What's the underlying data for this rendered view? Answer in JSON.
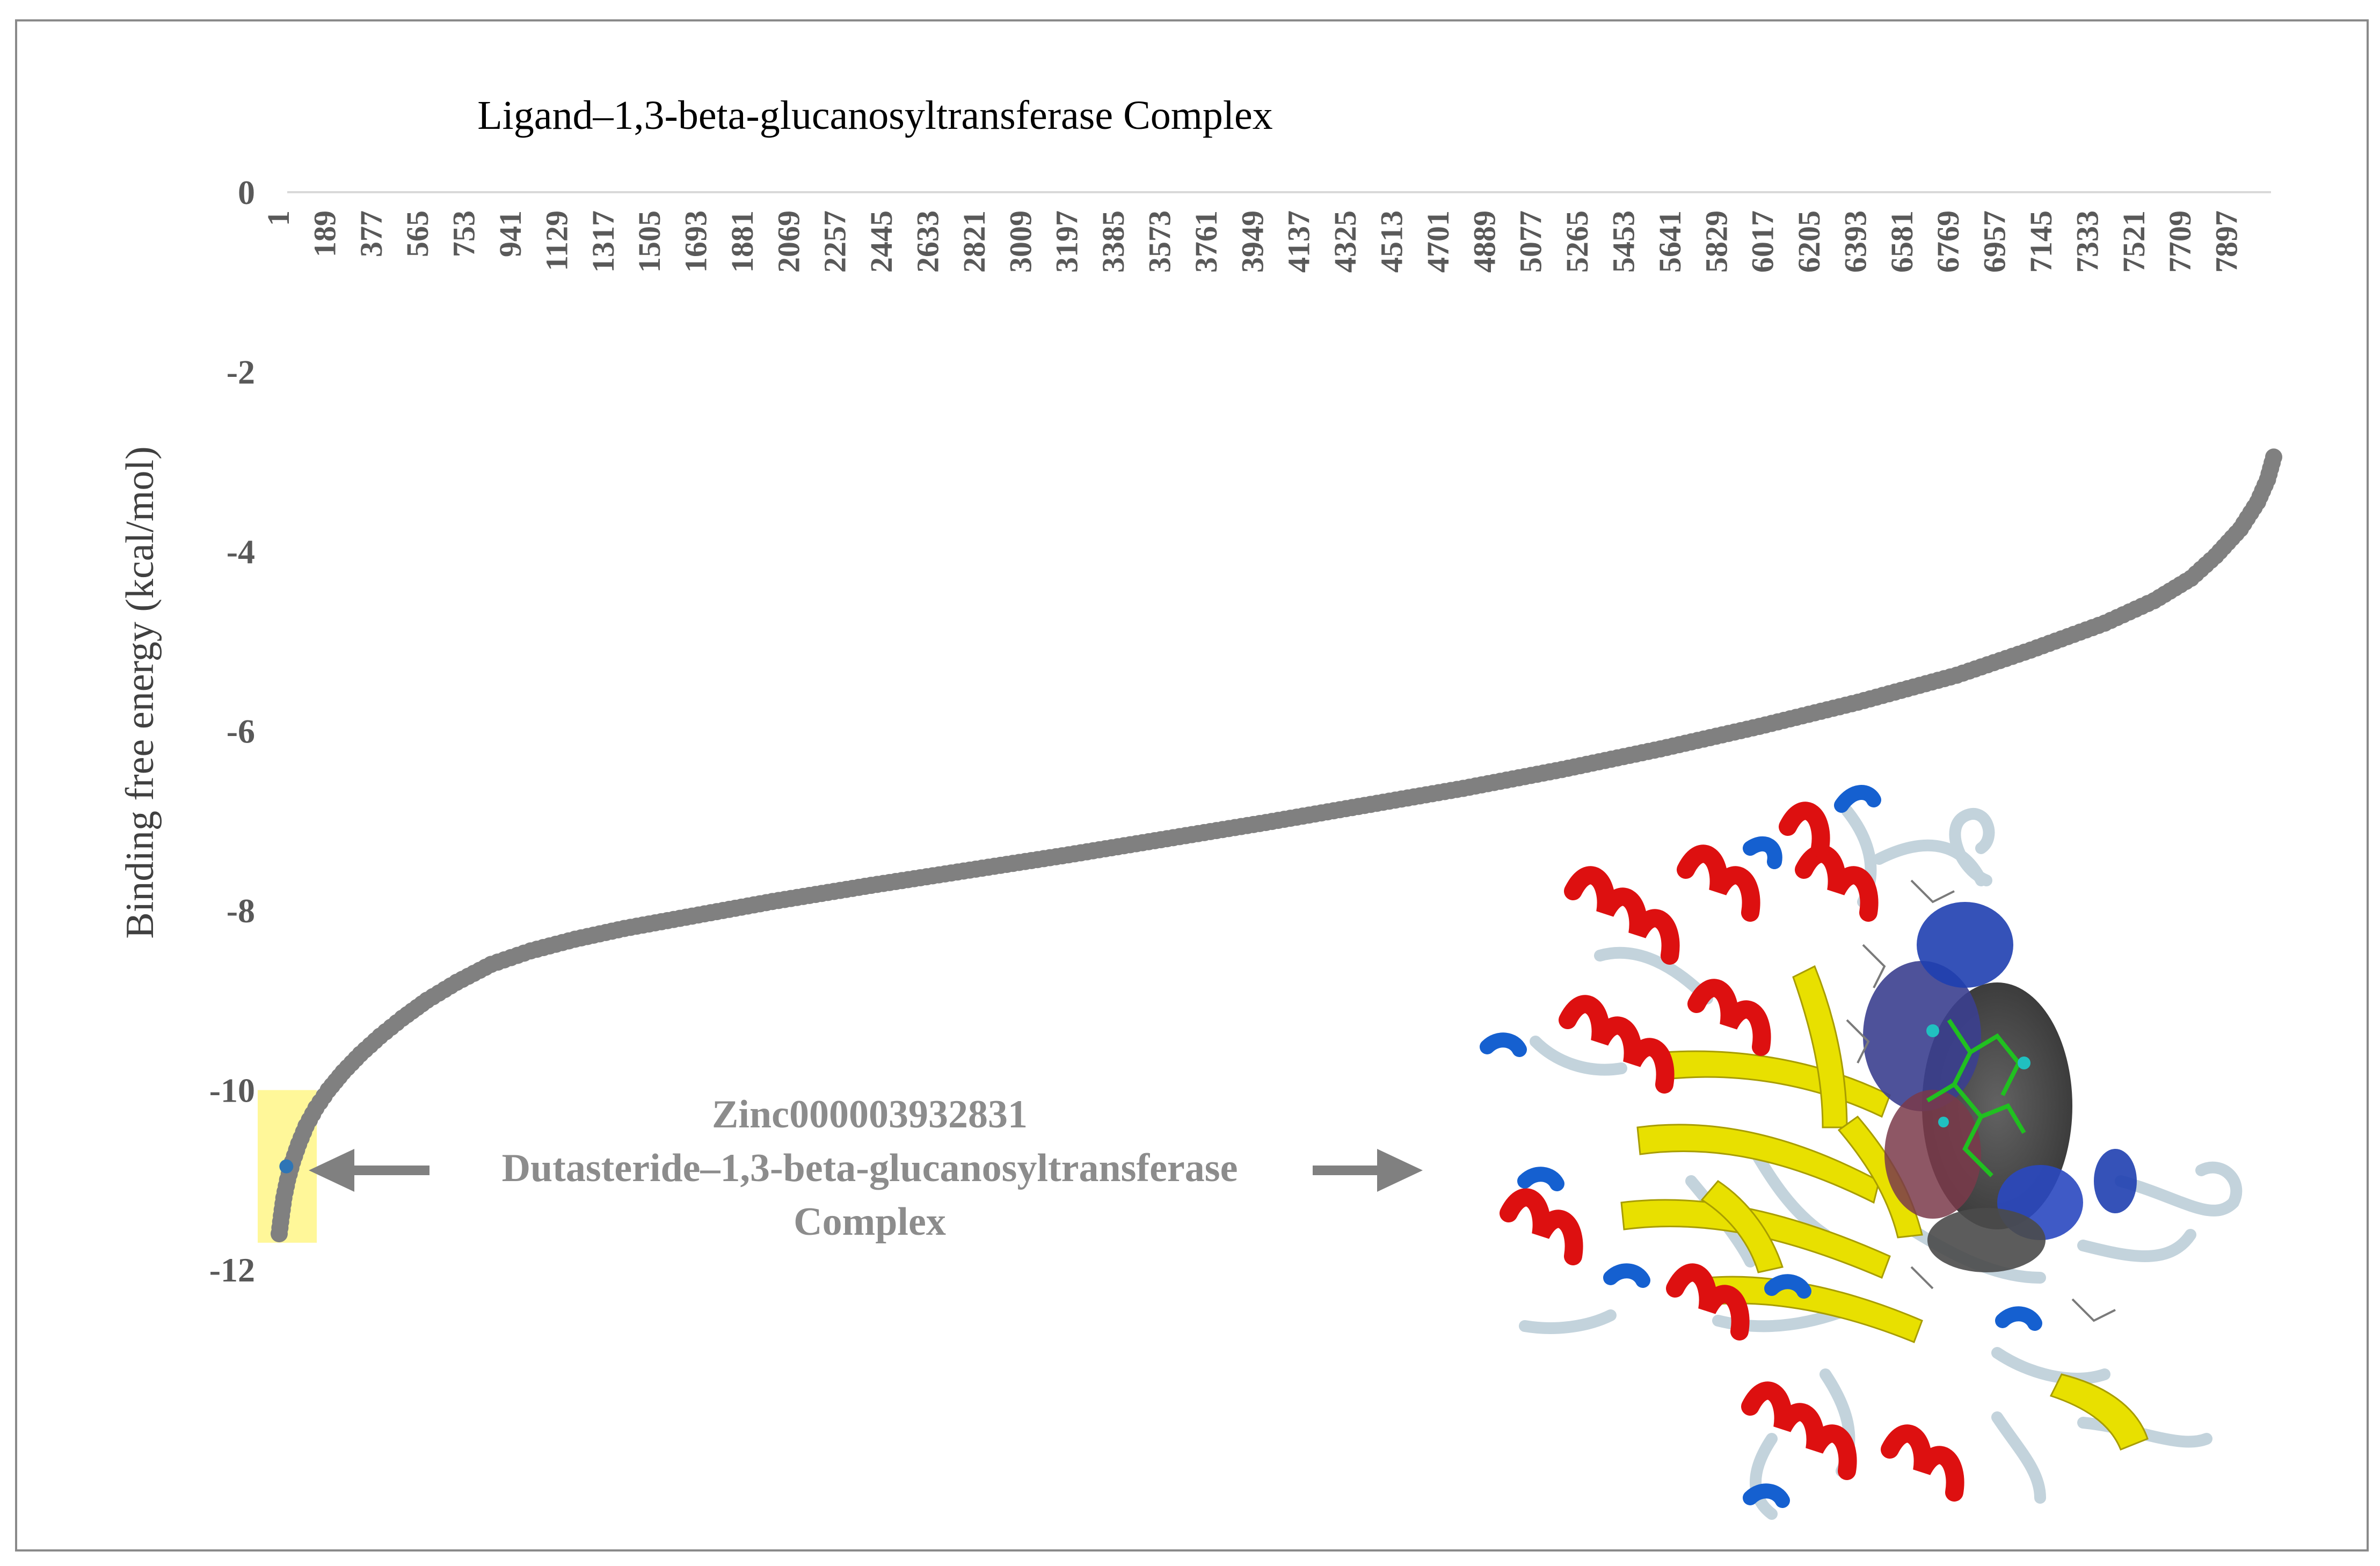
{
  "chart_data": {
    "type": "scatter",
    "title": "Ligand–1,3-beta-glucanosyltransferase  Complex",
    "ylabel": "Binding  free energy  (kcal/mol)",
    "xlabel": "",
    "x_tick_labels": [
      "1",
      "189",
      "377",
      "565",
      "753",
      "941",
      "1129",
      "1317",
      "1505",
      "1693",
      "1881",
      "2069",
      "2257",
      "2445",
      "2633",
      "2821",
      "3009",
      "3197",
      "3385",
      "3573",
      "3761",
      "3949",
      "4137",
      "4325",
      "4513",
      "4701",
      "4889",
      "5077",
      "5265",
      "5453",
      "5641",
      "5829",
      "6017",
      "6205",
      "6393",
      "6581",
      "6769",
      "6957",
      "7145",
      "7333",
      "7521",
      "7709",
      "7897"
    ],
    "y_tick_labels": [
      "0",
      "-2",
      "-4",
      "-6",
      "-8",
      "-10",
      "-12"
    ],
    "xlim": [
      1,
      8085
    ],
    "ylim": [
      -12,
      0
    ],
    "x_axis_position": "top",
    "grid": false,
    "legend": "none",
    "series": [
      {
        "color": "#808080",
        "points": [
          [
            1,
            -11.6
          ],
          [
            10,
            -11.4
          ],
          [
            20,
            -11.2
          ],
          [
            35,
            -11.0
          ],
          [
            55,
            -10.8
          ],
          [
            80,
            -10.6
          ],
          [
            110,
            -10.4
          ],
          [
            150,
            -10.2
          ],
          [
            200,
            -10.0
          ],
          [
            260,
            -9.8
          ],
          [
            330,
            -9.6
          ],
          [
            410,
            -9.4
          ],
          [
            500,
            -9.2
          ],
          [
            600,
            -9.0
          ],
          [
            720,
            -8.8
          ],
          [
            860,
            -8.6
          ],
          [
            1020,
            -8.45
          ],
          [
            1200,
            -8.32
          ],
          [
            1400,
            -8.2
          ],
          [
            1700,
            -8.05
          ],
          [
            2000,
            -7.9
          ],
          [
            2400,
            -7.72
          ],
          [
            2800,
            -7.55
          ],
          [
            3200,
            -7.38
          ],
          [
            3600,
            -7.2
          ],
          [
            4000,
            -7.02
          ],
          [
            4400,
            -6.83
          ],
          [
            4800,
            -6.64
          ],
          [
            5200,
            -6.43
          ],
          [
            5600,
            -6.2
          ],
          [
            6000,
            -5.95
          ],
          [
            6400,
            -5.68
          ],
          [
            6800,
            -5.38
          ],
          [
            7100,
            -5.1
          ],
          [
            7400,
            -4.8
          ],
          [
            7600,
            -4.55
          ],
          [
            7750,
            -4.3
          ],
          [
            7850,
            -4.05
          ],
          [
            7950,
            -3.75
          ],
          [
            8020,
            -3.45
          ],
          [
            8060,
            -3.2
          ],
          [
            8085,
            -2.95
          ]
        ]
      }
    ],
    "highlight": {
      "x": 30,
      "y": -10.85,
      "color": "#2e75b6",
      "box_color": "#fff799",
      "y_range": [
        -11.7,
        -10.0
      ]
    },
    "annotation": {
      "lines": [
        "Zinc000003932831",
        "Dutasteride–1,3-beta-glucanosyltransferase",
        "Complex"
      ],
      "arrow_color": "#808080"
    },
    "inset": "protein-ligand docking structure (ribbon diagram with ligand surface)"
  }
}
